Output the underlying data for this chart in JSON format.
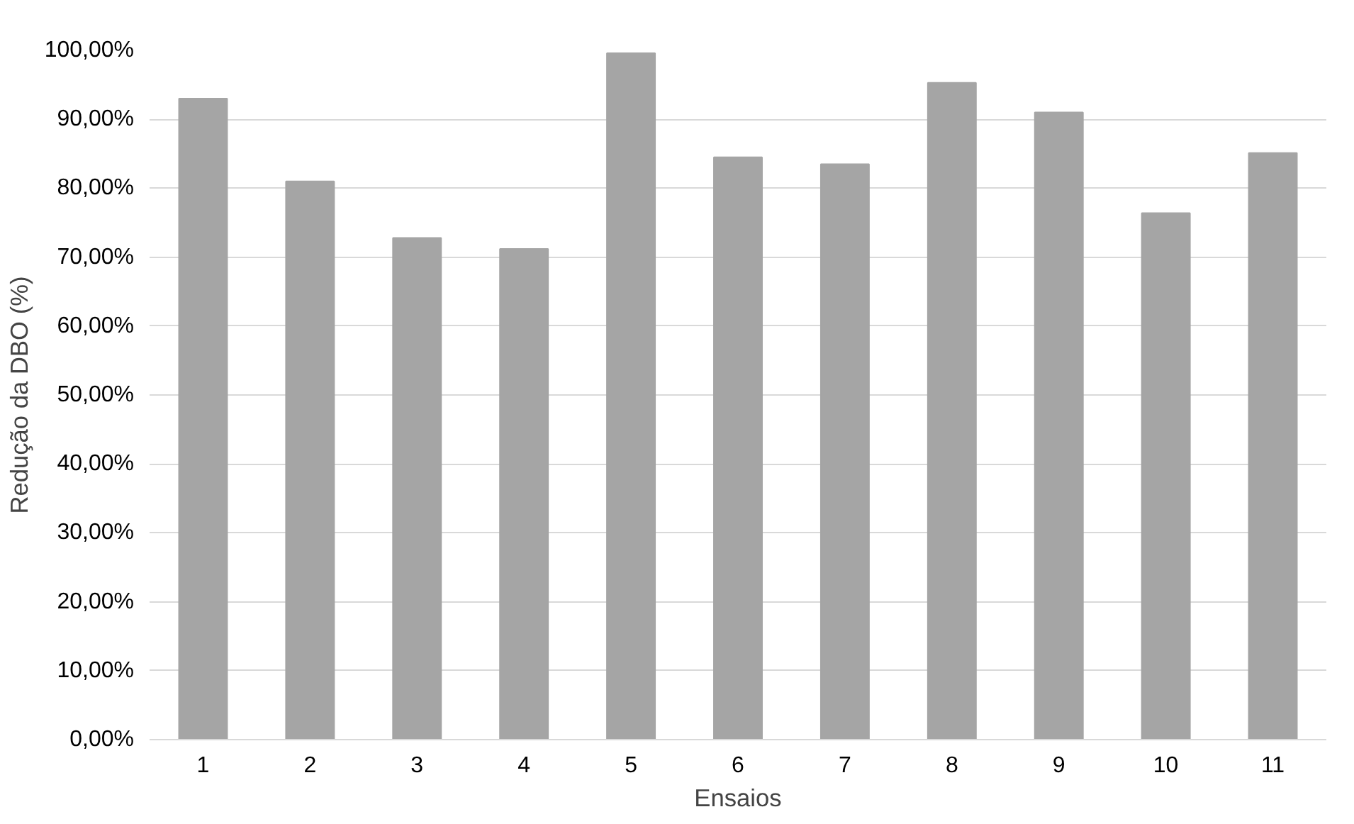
{
  "chart_data": {
    "type": "bar",
    "xlabel": "Ensaios",
    "ylabel": "Redução da DBO (%)",
    "categories": [
      "1",
      "2",
      "3",
      "4",
      "5",
      "6",
      "7",
      "8",
      "9",
      "10",
      "11"
    ],
    "values": [
      93,
      81,
      72.8,
      71.2,
      99.6,
      84.5,
      83.5,
      95.3,
      91,
      76.4,
      85.1
    ],
    "color": "#a5a5a5",
    "ylim": [
      0,
      100
    ],
    "yticks": [
      {
        "value": 0,
        "label": "0,00%"
      },
      {
        "value": 10,
        "label": "10,00%"
      },
      {
        "value": 20,
        "label": "20,00%"
      },
      {
        "value": 30,
        "label": "30,00%"
      },
      {
        "value": 40,
        "label": "40,00%"
      },
      {
        "value": 50,
        "label": "50,00%"
      },
      {
        "value": 60,
        "label": "60,00%"
      },
      {
        "value": 70,
        "label": "70,00%"
      },
      {
        "value": 80,
        "label": "80,00%"
      },
      {
        "value": 90,
        "label": "90,00%"
      },
      {
        "value": 100,
        "label": "100,00%"
      }
    ],
    "grid": "y"
  }
}
